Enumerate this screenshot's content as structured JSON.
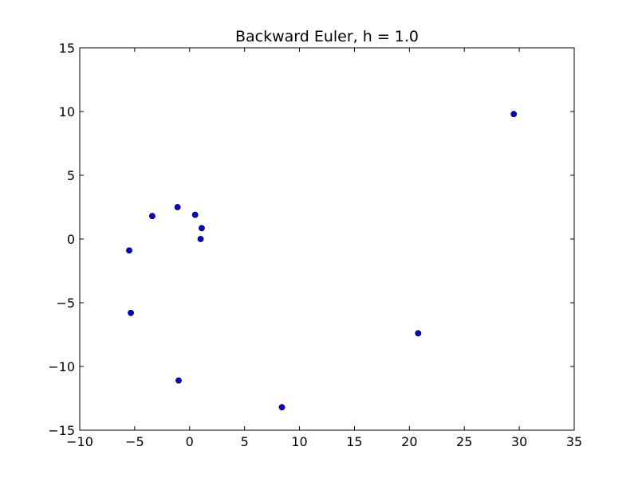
{
  "chart_data": {
    "type": "scatter",
    "title": "Backward Euler, h = 1.0",
    "xlabel": "",
    "ylabel": "",
    "xlim": [
      -10,
      35
    ],
    "ylim": [
      -15,
      15
    ],
    "x_ticks": [
      -10,
      -5,
      0,
      5,
      10,
      15,
      20,
      25,
      30,
      35
    ],
    "y_ticks": [
      -15,
      -10,
      -5,
      0,
      5,
      10,
      15
    ],
    "grid": false,
    "marker_color": "#0000ff",
    "points": [
      {
        "x": 1.0,
        "y": 0.0
      },
      {
        "x": 1.1,
        "y": 0.85
      },
      {
        "x": 0.5,
        "y": 1.9
      },
      {
        "x": -1.1,
        "y": 2.5
      },
      {
        "x": -3.4,
        "y": 1.8
      },
      {
        "x": -5.5,
        "y": -0.9
      },
      {
        "x": -5.35,
        "y": -5.8
      },
      {
        "x": -1.0,
        "y": -11.1
      },
      {
        "x": 8.4,
        "y": -13.2
      },
      {
        "x": 20.8,
        "y": -7.4
      },
      {
        "x": 29.5,
        "y": 9.8
      }
    ]
  }
}
